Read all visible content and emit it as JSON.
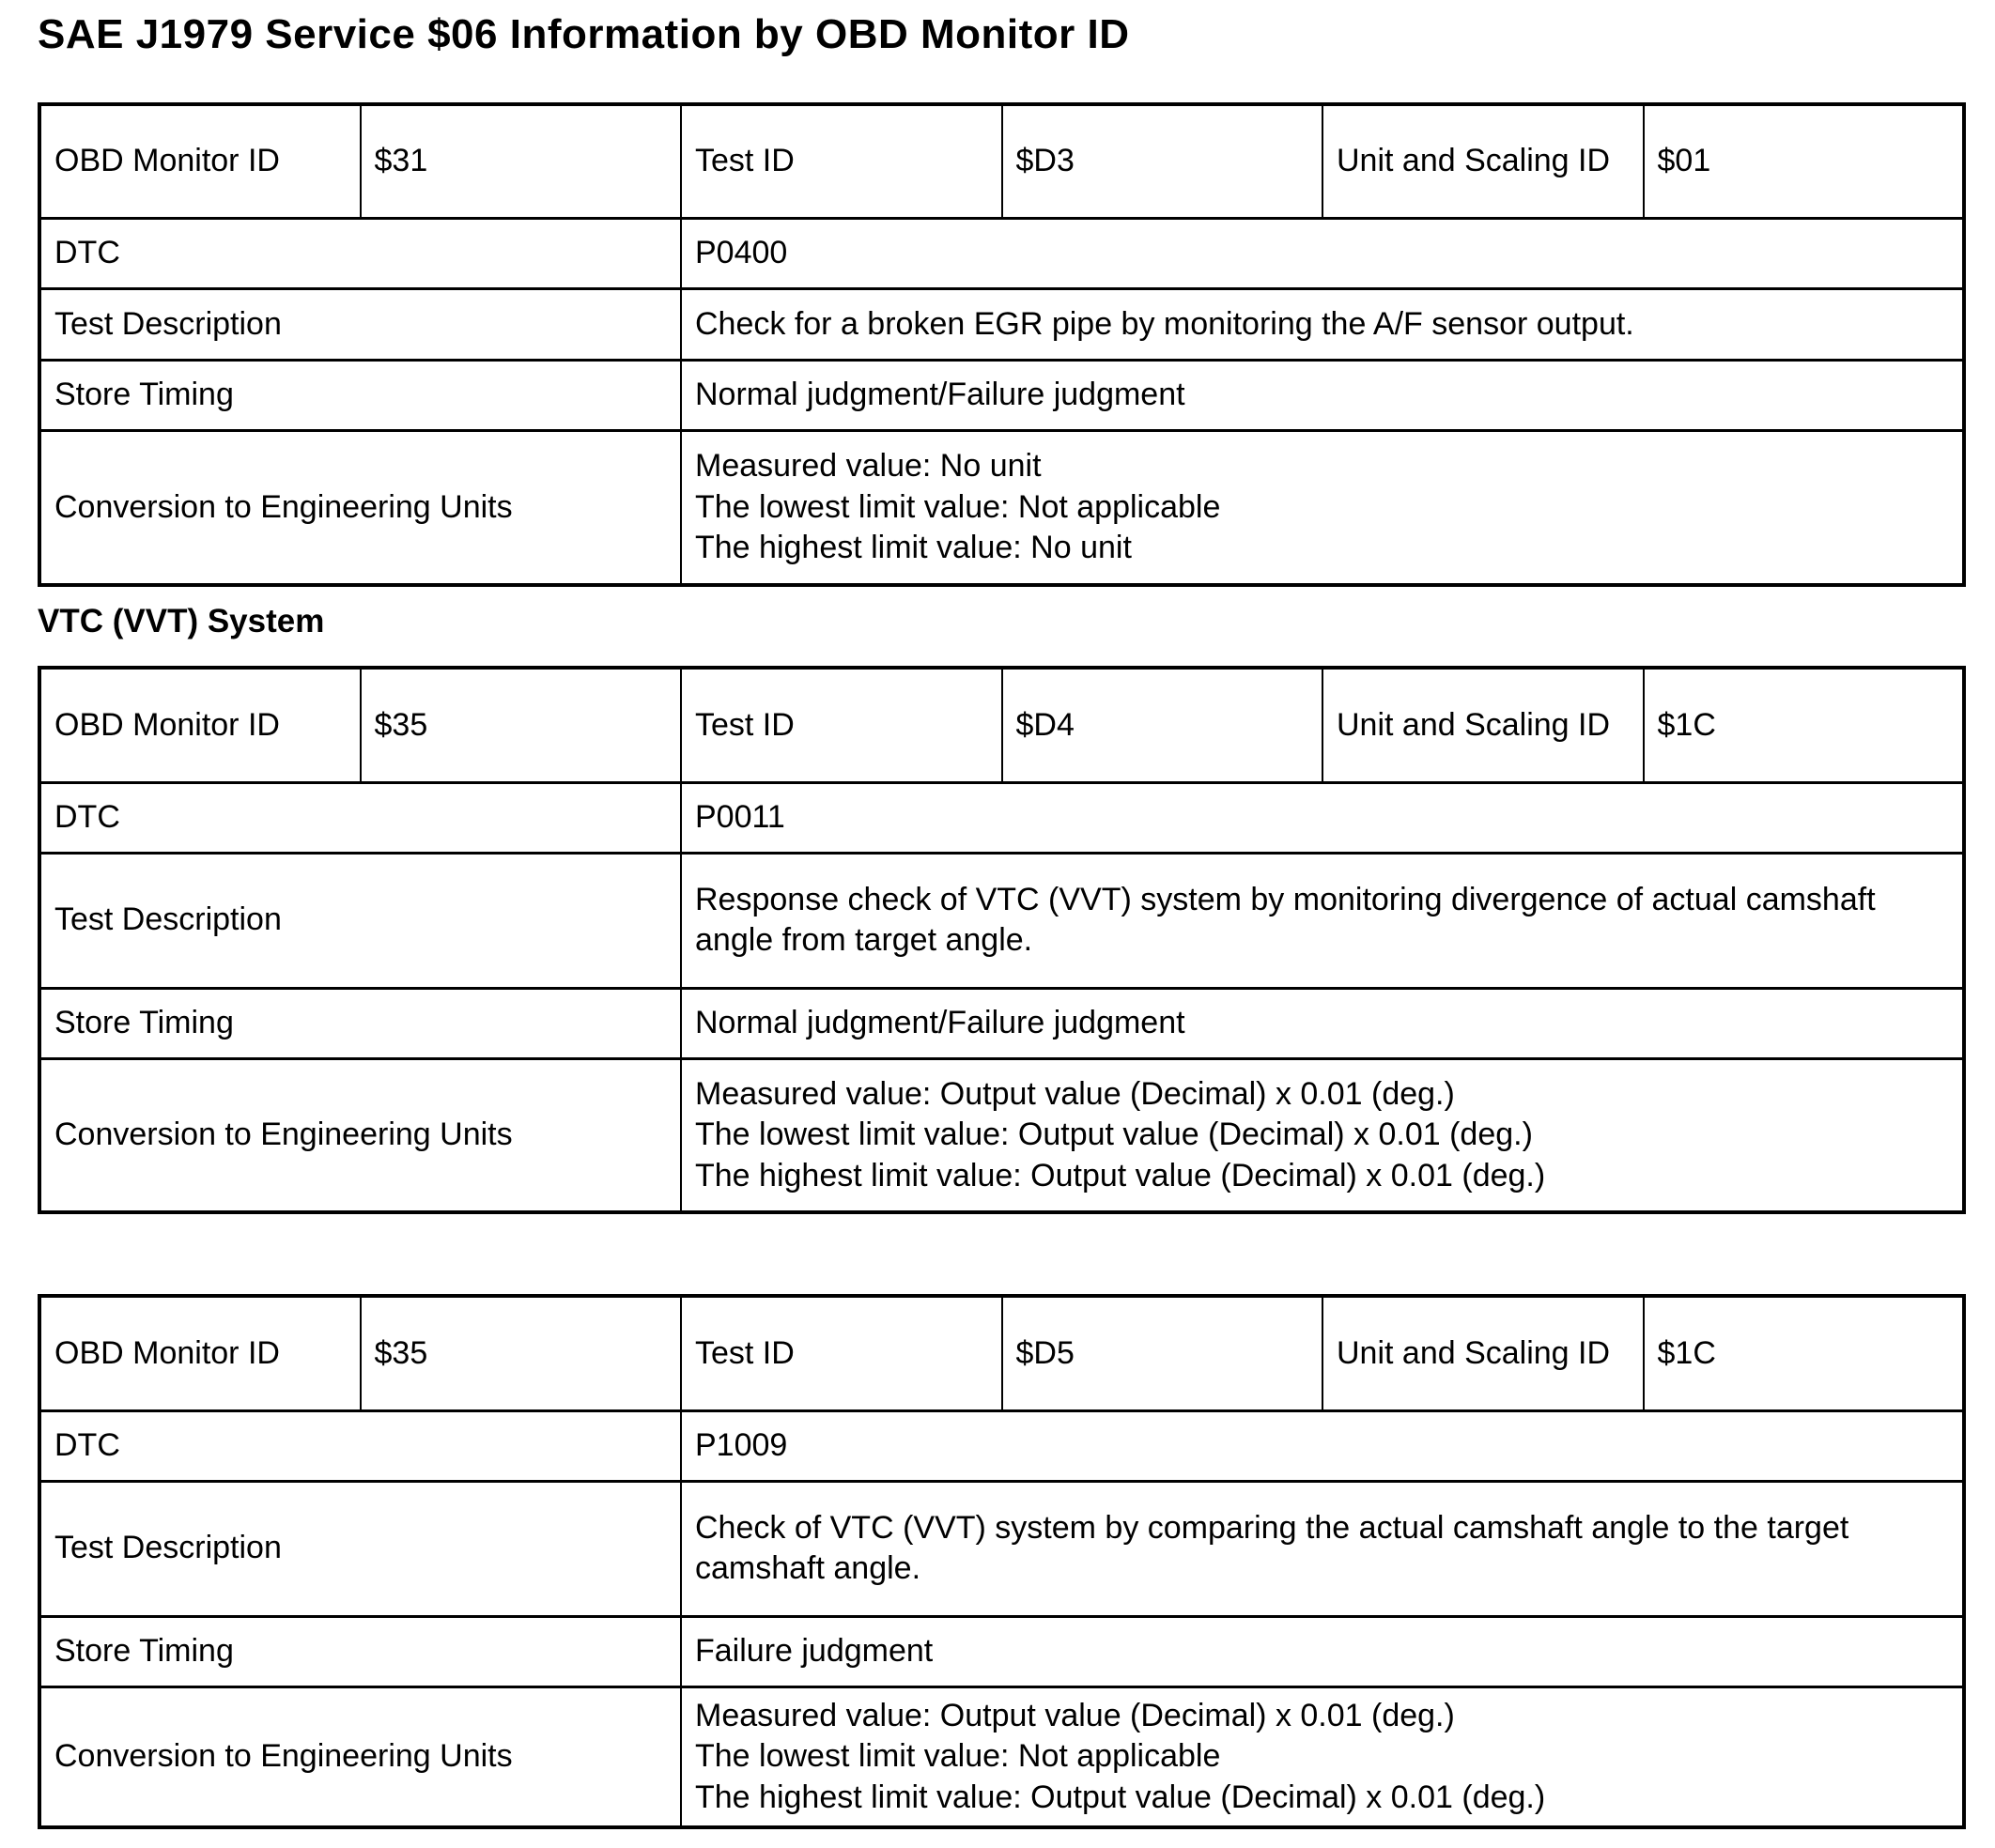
{
  "page": {
    "title": "SAE J1979 Service $06 Information by OBD Monitor ID",
    "section_heading": "VTC (VVT) System",
    "text_color": "#000000",
    "background_color": "#ffffff",
    "border_color": "#000000"
  },
  "labels": {
    "obd_monitor_id": "OBD Monitor ID",
    "test_id": "Test ID",
    "unit_scaling_id": "Unit and Scaling ID",
    "dtc": "DTC",
    "test_description": "Test Description",
    "store_timing": "Store Timing",
    "conversion": "Conversion to Engineering Units"
  },
  "tables": [
    {
      "obd_monitor_id": "$31",
      "test_id": "$D3",
      "unit_scaling_id": "$01",
      "dtc": "P0400",
      "test_description": "Check for a broken EGR pipe by monitoring the A/F sensor output.",
      "store_timing": "Normal judgment/Failure judgment",
      "conversion_lines": [
        "Measured value: No unit",
        "The lowest limit value: Not applicable",
        "The highest limit value: No unit"
      ]
    },
    {
      "obd_monitor_id": "$35",
      "test_id": "$D4",
      "unit_scaling_id": "$1C",
      "dtc": "P0011",
      "test_description": "Response check of VTC (VVT) system by monitoring divergence of actual camshaft angle from target angle.",
      "store_timing": "Normal judgment/Failure judgment",
      "conversion_lines": [
        "Measured value: Output value (Decimal) x 0.01 (deg.)",
        "The lowest limit value: Output value (Decimal) x 0.01 (deg.)",
        "The highest limit value: Output value (Decimal) x 0.01 (deg.)"
      ]
    },
    {
      "obd_monitor_id": "$35",
      "test_id": "$D5",
      "unit_scaling_id": "$1C",
      "dtc": "P1009",
      "test_description": "Check of VTC (VVT) system by comparing the actual camshaft angle to the target camshaft angle.",
      "store_timing": "Failure judgment",
      "conversion_lines": [
        "Measured value: Output value (Decimal) x 0.01 (deg.)",
        "The lowest limit value: Not applicable",
        "The highest limit value: Output value (Decimal) x 0.01 (deg.)"
      ]
    }
  ]
}
